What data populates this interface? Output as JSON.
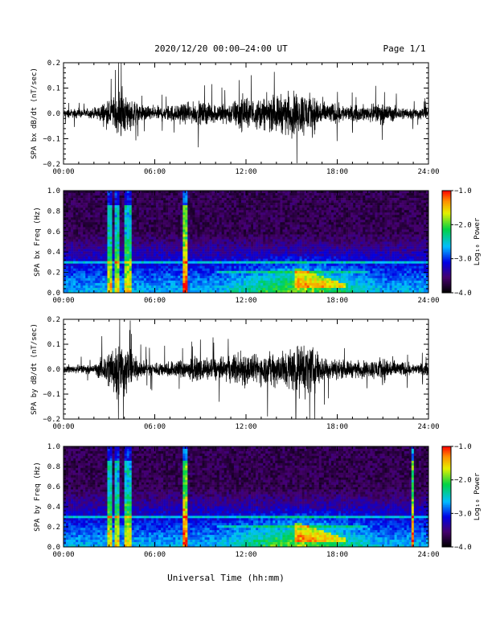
{
  "header": {
    "title": "2020/12/20  00:00–24:00 UT",
    "page": "Page 1/1"
  },
  "xaxis_label": "Universal Time (hh:mm)",
  "colorbar_title": "Log₁₀ Power",
  "chart_data": [
    {
      "type": "line",
      "ylabel": "SPA bx dB/dt (nT/sec)",
      "xlim": [
        0,
        24
      ],
      "ylim": [
        -0.2,
        0.2
      ],
      "xticks": [
        "00:00",
        "06:00",
        "12:00",
        "18:00",
        "24:00"
      ],
      "yticks": [
        "0.2",
        "0.1",
        "0.0",
        "−0.1",
        "−0.2"
      ],
      "envelope": {
        "hour": [
          0,
          2,
          2.8,
          3.3,
          3.8,
          4.3,
          5,
          6,
          7,
          8,
          9,
          10,
          11,
          11.8,
          12.3,
          13,
          14,
          15,
          15.8,
          16.5,
          17,
          18,
          19,
          20,
          21,
          22,
          23,
          24
        ],
        "amplitude": [
          0.03,
          0.035,
          0.09,
          0.12,
          0.17,
          0.12,
          0.06,
          0.05,
          0.06,
          0.07,
          0.08,
          0.07,
          0.08,
          0.13,
          0.1,
          0.11,
          0.13,
          0.15,
          0.16,
          0.13,
          0.09,
          0.07,
          0.05,
          0.06,
          0.07,
          0.05,
          0.04,
          0.04
        ]
      }
    },
    {
      "type": "heatmap",
      "ylabel": "SPA bx Freq (Hz)",
      "xlim": [
        0,
        24
      ],
      "ylim": [
        0,
        1.0
      ],
      "xticks": [
        "00:00",
        "06:00",
        "12:00",
        "18:00",
        "24:00"
      ],
      "yticks": [
        "1.0",
        "0.8",
        "0.6",
        "0.4",
        "0.2",
        "0.0"
      ],
      "clim": [
        -4.0,
        -1.0
      ],
      "cticks": [
        "−1.0",
        "−2.0",
        "−3.0",
        "−4.0"
      ]
    },
    {
      "type": "line",
      "ylabel": "SPA by dB/dt (nT/sec)",
      "xlim": [
        0,
        24
      ],
      "ylim": [
        -0.2,
        0.2
      ],
      "xticks": [
        "00:00",
        "06:00",
        "12:00",
        "18:00",
        "24:00"
      ],
      "yticks": [
        "0.2",
        "0.1",
        "0.0",
        "−0.1",
        "−0.2"
      ],
      "envelope": {
        "hour": [
          0,
          2,
          2.8,
          3.3,
          3.8,
          4.3,
          5,
          6,
          7,
          8,
          9,
          10,
          11,
          11.8,
          12.3,
          13,
          14,
          15,
          15.8,
          16.5,
          17,
          18,
          19,
          20,
          21,
          22,
          23,
          24
        ],
        "amplitude": [
          0.03,
          0.03,
          0.12,
          0.2,
          0.22,
          0.14,
          0.06,
          0.05,
          0.06,
          0.07,
          0.08,
          0.08,
          0.09,
          0.15,
          0.1,
          0.11,
          0.13,
          0.16,
          0.2,
          0.15,
          0.1,
          0.07,
          0.06,
          0.06,
          0.09,
          0.06,
          0.04,
          0.04
        ]
      }
    },
    {
      "type": "heatmap",
      "ylabel": "SPA by Freq (Hz)",
      "xlim": [
        0,
        24
      ],
      "ylim": [
        0,
        1.0
      ],
      "xticks": [
        "00:00",
        "06:00",
        "12:00",
        "18:00",
        "24:00"
      ],
      "yticks": [
        "1.0",
        "0.8",
        "0.6",
        "0.4",
        "0.2",
        "0.0"
      ],
      "clim": [
        -4.0,
        -1.0
      ],
      "cticks": [
        "−1.0",
        "−2.0",
        "−3.0",
        "−4.0"
      ]
    }
  ]
}
